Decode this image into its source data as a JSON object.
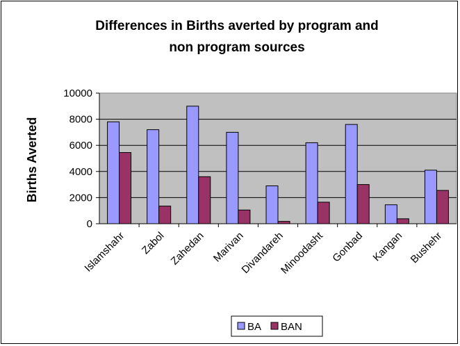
{
  "chart_data": {
    "type": "bar",
    "title_lines": [
      "Differences in Births averted by program and",
      "non program sources"
    ],
    "xlabel": "",
    "ylabel": "Births Averted",
    "ylim": [
      0,
      10000
    ],
    "yticks": [
      "0",
      "2000",
      "4000",
      "6000",
      "8000",
      "10000"
    ],
    "categories": [
      "Islamshahr",
      "Zabol",
      "Zahedan",
      "Marivan",
      "Divandareh",
      "Minoodasht",
      "Gonbad",
      "Kangan",
      "Bushehr"
    ],
    "series": [
      {
        "name": "BA",
        "color": "#9999ff",
        "values": [
          7800,
          7200,
          9000,
          7000,
          2900,
          6200,
          7600,
          1450,
          4100
        ]
      },
      {
        "name": "BAN",
        "color": "#993366",
        "values": [
          5450,
          1350,
          3600,
          1050,
          180,
          1650,
          3000,
          380,
          2550
        ]
      }
    ],
    "grid": true,
    "plot_background": "#c0c0c0",
    "legend_position": "bottom"
  }
}
